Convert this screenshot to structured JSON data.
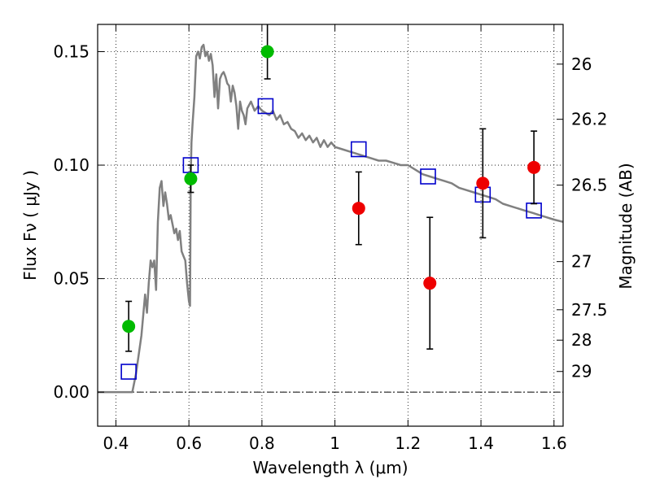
{
  "chart_data": {
    "type": "scatter",
    "xlabel": "Wavelength  λ (μm)",
    "ylabel": "Flux  Fν  ( μJy )",
    "y2label": "Magnitude (AB)",
    "xlim": [
      0.35,
      1.625
    ],
    "ylim": [
      -0.015,
      0.162
    ],
    "grid": true,
    "x_ticks": [
      {
        "value": 0.4,
        "label": "0.4"
      },
      {
        "value": 0.6,
        "label": "0.6"
      },
      {
        "value": 0.8,
        "label": "0.8"
      },
      {
        "value": 1.0,
        "label": "1"
      },
      {
        "value": 1.2,
        "label": "1.2"
      },
      {
        "value": 1.4,
        "label": "1.4"
      },
      {
        "value": 1.6,
        "label": "1.6"
      }
    ],
    "y_ticks": [
      {
        "value": 0.0,
        "label": "0.00"
      },
      {
        "value": 0.05,
        "label": "0.05"
      },
      {
        "value": 0.1,
        "label": "0.10"
      },
      {
        "value": 0.15,
        "label": "0.15"
      }
    ],
    "y2_ticks": [
      {
        "label": "26",
        "flux": 0.1445
      },
      {
        "label": "26.2",
        "flux": 0.1202
      },
      {
        "label": "26.5",
        "flux": 0.0912
      },
      {
        "label": "27",
        "flux": 0.0575
      },
      {
        "label": "27.5",
        "flux": 0.0363
      },
      {
        "label": "28",
        "flux": 0.0229
      },
      {
        "label": "29",
        "flux": 0.0091
      }
    ],
    "series": [
      {
        "kind": "model_spectrum",
        "color": "#808080",
        "x": [
          0.35,
          0.445,
          0.455,
          0.47,
          0.48,
          0.485,
          0.49,
          0.495,
          0.5,
          0.505,
          0.51,
          0.515,
          0.52,
          0.525,
          0.53,
          0.535,
          0.54,
          0.545,
          0.55,
          0.555,
          0.56,
          0.565,
          0.57,
          0.575,
          0.58,
          0.585,
          0.59,
          0.595,
          0.6,
          0.603,
          0.605,
          0.607,
          0.61,
          0.615,
          0.62,
          0.625,
          0.63,
          0.635,
          0.64,
          0.645,
          0.65,
          0.655,
          0.66,
          0.665,
          0.67,
          0.675,
          0.68,
          0.685,
          0.69,
          0.695,
          0.7,
          0.705,
          0.71,
          0.715,
          0.72,
          0.725,
          0.73,
          0.735,
          0.74,
          0.745,
          0.75,
          0.755,
          0.76,
          0.77,
          0.78,
          0.79,
          0.8,
          0.81,
          0.82,
          0.83,
          0.84,
          0.85,
          0.86,
          0.87,
          0.88,
          0.89,
          0.9,
          0.91,
          0.92,
          0.93,
          0.94,
          0.95,
          0.96,
          0.97,
          0.98,
          0.99,
          1.0,
          1.02,
          1.04,
          1.06,
          1.08,
          1.1,
          1.12,
          1.14,
          1.16,
          1.18,
          1.2,
          1.22,
          1.24,
          1.26,
          1.28,
          1.3,
          1.32,
          1.34,
          1.36,
          1.38,
          1.4,
          1.42,
          1.44,
          1.46,
          1.48,
          1.5,
          1.52,
          1.54,
          1.56,
          1.58,
          1.6,
          1.625
        ],
        "y": [
          0.0,
          0.0,
          0.008,
          0.025,
          0.043,
          0.035,
          0.048,
          0.058,
          0.055,
          0.058,
          0.045,
          0.075,
          0.09,
          0.093,
          0.082,
          0.088,
          0.083,
          0.076,
          0.078,
          0.074,
          0.07,
          0.072,
          0.067,
          0.071,
          0.062,
          0.06,
          0.058,
          0.048,
          0.04,
          0.038,
          0.095,
          0.11,
          0.118,
          0.13,
          0.148,
          0.15,
          0.147,
          0.152,
          0.153,
          0.148,
          0.15,
          0.146,
          0.149,
          0.144,
          0.13,
          0.14,
          0.125,
          0.138,
          0.14,
          0.141,
          0.139,
          0.136,
          0.135,
          0.128,
          0.135,
          0.132,
          0.126,
          0.116,
          0.128,
          0.124,
          0.122,
          0.118,
          0.125,
          0.128,
          0.124,
          0.126,
          0.124,
          0.123,
          0.122,
          0.124,
          0.12,
          0.122,
          0.118,
          0.119,
          0.116,
          0.115,
          0.112,
          0.114,
          0.111,
          0.113,
          0.11,
          0.112,
          0.108,
          0.111,
          0.108,
          0.11,
          0.108,
          0.107,
          0.106,
          0.105,
          0.104,
          0.103,
          0.102,
          0.102,
          0.101,
          0.1,
          0.1,
          0.098,
          0.096,
          0.095,
          0.094,
          0.093,
          0.092,
          0.09,
          0.089,
          0.088,
          0.087,
          0.086,
          0.085,
          0.083,
          0.082,
          0.081,
          0.08,
          0.079,
          0.078,
          0.077,
          0.076,
          0.075
        ]
      },
      {
        "kind": "model_photometry",
        "marker": "open-square",
        "color": "#0000cc",
        "x": [
          0.435,
          0.605,
          0.81,
          1.065,
          1.255,
          1.405,
          1.545
        ],
        "y": [
          0.009,
          0.1,
          0.126,
          0.107,
          0.095,
          0.087,
          0.08
        ]
      },
      {
        "kind": "observed_photometry",
        "marker": "filled-circle",
        "color": "#00bb00",
        "x": [
          0.435,
          0.605,
          0.815
        ],
        "y": [
          0.029,
          0.094,
          0.15
        ],
        "yerr": [
          0.011,
          0.006,
          0.012
        ],
        "err_upper_clipped": [
          false,
          false,
          true
        ]
      },
      {
        "kind": "observed_photometry",
        "marker": "filled-circle",
        "color": "#ee0000",
        "x": [
          1.065,
          1.26,
          1.405,
          1.545
        ],
        "y": [
          0.081,
          0.048,
          0.092,
          0.099
        ],
        "yerr": [
          0.016,
          0.029,
          0.024,
          0.016
        ]
      }
    ]
  }
}
